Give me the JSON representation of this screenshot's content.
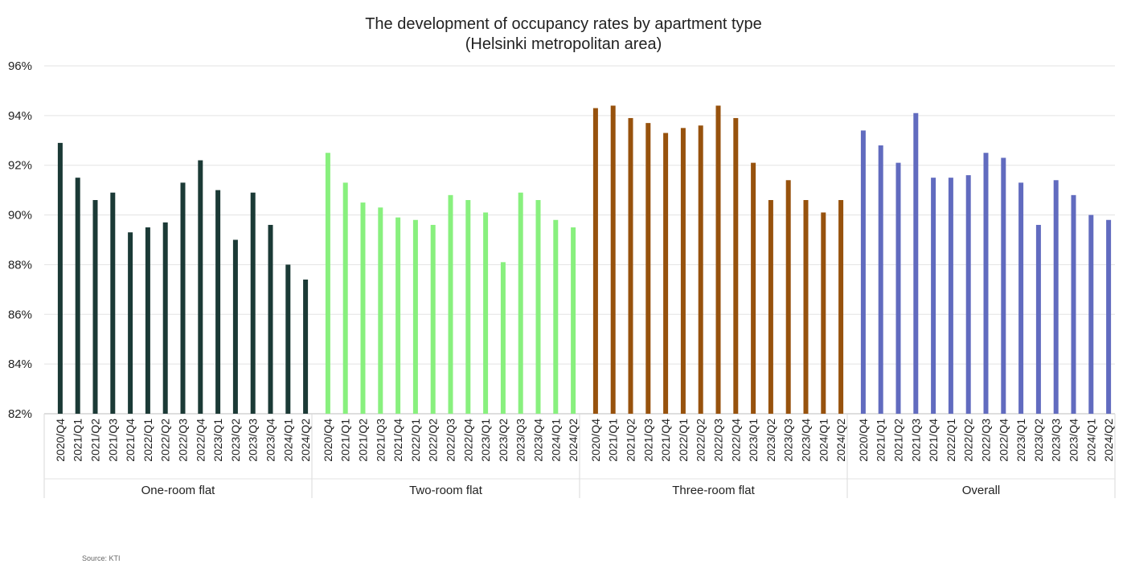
{
  "chart_data": {
    "type": "bar",
    "title": "The development of occupancy rates by apartment type",
    "subtitle": "(Helsinki metropolitan area)",
    "source": "Source: KTI",
    "xlabel": "",
    "ylabel": "",
    "ylim": [
      82,
      96
    ],
    "yticks": [
      "82%",
      "84%",
      "86%",
      "88%",
      "90%",
      "92%",
      "94%",
      "96%"
    ],
    "ytick_values": [
      82,
      84,
      86,
      88,
      90,
      92,
      94,
      96
    ],
    "grid": true,
    "categories": [
      "2020/Q4",
      "2021/Q1",
      "2021/Q2",
      "2021/Q3",
      "2021/Q4",
      "2022/Q1",
      "2022/Q2",
      "2022/Q3",
      "2022/Q4",
      "2023/Q1",
      "2023/Q2",
      "2023/Q3",
      "2023/Q4",
      "2024/Q1",
      "2024/Q2"
    ],
    "series": [
      {
        "name": "One-room flat",
        "color": "#1b3a36",
        "values": [
          92.9,
          91.5,
          90.6,
          90.9,
          89.3,
          89.5,
          89.7,
          91.3,
          92.2,
          91.0,
          89.0,
          90.9,
          89.6,
          88.0,
          87.4
        ]
      },
      {
        "name": "Two-room flat",
        "color": "#88f07e",
        "values": [
          92.5,
          91.3,
          90.5,
          90.3,
          89.9,
          89.8,
          89.6,
          90.8,
          90.6,
          90.1,
          88.1,
          90.9,
          90.6,
          89.8,
          89.5
        ]
      },
      {
        "name": "Three-room flat",
        "color": "#97520d",
        "values": [
          94.3,
          94.4,
          93.9,
          93.7,
          93.3,
          93.5,
          93.6,
          94.4,
          93.9,
          92.1,
          90.6,
          91.4,
          90.6,
          90.1,
          90.6
        ]
      },
      {
        "name": "Overall",
        "color": "#616bbf",
        "values": [
          93.4,
          92.8,
          92.1,
          94.1,
          91.5,
          91.5,
          91.6,
          92.5,
          92.3,
          91.3,
          89.6,
          91.4,
          90.8,
          90.0,
          89.8
        ]
      }
    ]
  }
}
